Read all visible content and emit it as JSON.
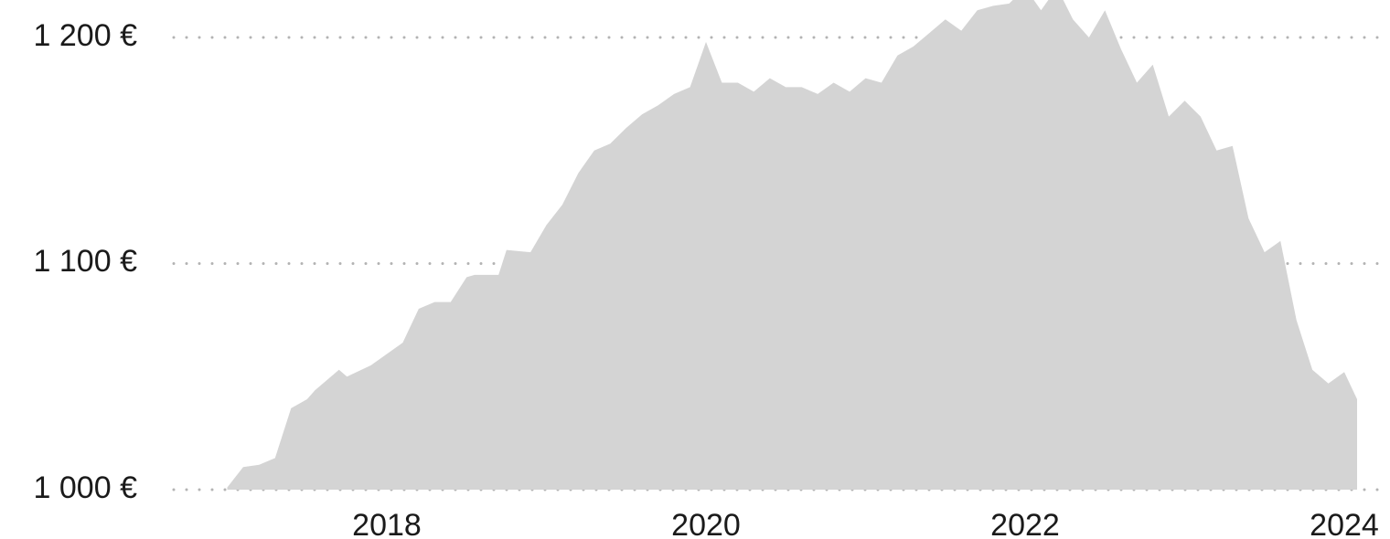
{
  "chart_data": {
    "type": "area",
    "title": "",
    "xlabel": "",
    "ylabel": "",
    "x_ticks": [
      2018,
      2020,
      2022,
      2024
    ],
    "x_tick_labels": [
      "2018",
      "2020",
      "2022",
      "2024"
    ],
    "y_ticks": [
      1000,
      1100,
      1200
    ],
    "y_tick_labels": [
      "1 000 €",
      "1 100 €",
      "1 200 €"
    ],
    "xlim": [
      2016.58,
      2024.1
    ],
    "ylim": [
      1000,
      1222
    ],
    "grid": "horizontal-dotted",
    "legend": "none",
    "color": "#d4d4d4",
    "x": [
      2017.0,
      2017.1,
      2017.2,
      2017.3,
      2017.4,
      2017.5,
      2017.55,
      2017.7,
      2017.75,
      2017.9,
      2018.0,
      2018.1,
      2018.2,
      2018.3,
      2018.4,
      2018.5,
      2018.55,
      2018.7,
      2018.75,
      2018.9,
      2019.0,
      2019.1,
      2019.2,
      2019.3,
      2019.4,
      2019.5,
      2019.6,
      2019.7,
      2019.8,
      2019.9,
      2020.0,
      2020.1,
      2020.2,
      2020.3,
      2020.4,
      2020.5,
      2020.6,
      2020.7,
      2020.8,
      2020.9,
      2021.0,
      2021.1,
      2021.2,
      2021.3,
      2021.4,
      2021.5,
      2021.6,
      2021.7,
      2021.8,
      2021.9,
      2022.0,
      2022.1,
      2022.2,
      2022.3,
      2022.4,
      2022.5,
      2022.6,
      2022.7,
      2022.8,
      2022.9,
      2023.0,
      2023.1,
      2023.2,
      2023.3,
      2023.4,
      2023.5,
      2023.6,
      2023.7,
      2023.8,
      2023.9,
      2024.0,
      2024.08
    ],
    "y": [
      1001,
      1010,
      1011,
      1014,
      1036,
      1040,
      1044,
      1053,
      1050,
      1055,
      1060,
      1065,
      1080,
      1083,
      1083,
      1094,
      1095,
      1095,
      1106,
      1105,
      1117,
      1126,
      1140,
      1150,
      1153,
      1160,
      1166,
      1170,
      1175,
      1178,
      1198,
      1180,
      1180,
      1176,
      1182,
      1178,
      1178,
      1175,
      1180,
      1176,
      1182,
      1180,
      1192,
      1196,
      1202,
      1208,
      1203,
      1212,
      1214,
      1215,
      1222,
      1212,
      1222,
      1208,
      1200,
      1212,
      1195,
      1180,
      1188,
      1165,
      1172,
      1165,
      1150,
      1152,
      1120,
      1105,
      1110,
      1075,
      1053,
      1047,
      1052,
      1040
    ]
  }
}
